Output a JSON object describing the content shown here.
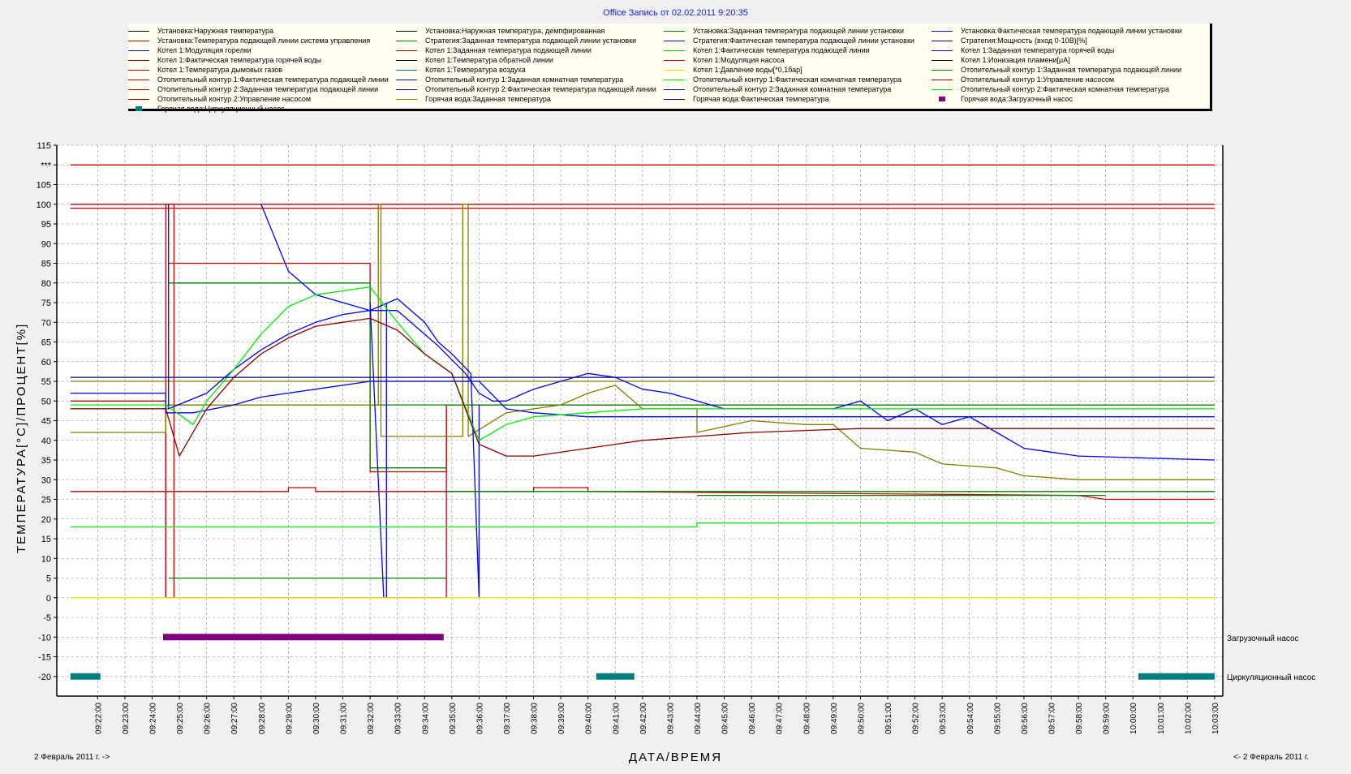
{
  "title": "Office Запись от 02.02.2011 9:20:35",
  "legend": [
    {
      "label": "Установка:Наружная температура",
      "color": "#000000"
    },
    {
      "label": "Установка:Наружная температура, демпфированная",
      "color": "#000000"
    },
    {
      "label": "Установка:Заданная температура подающей линии установки",
      "color": "#008000"
    },
    {
      "label": "Установка:Фактическая температура подающей линии установки",
      "color": "#0000ff"
    },
    {
      "label": "Установка:Температура подающей линии система управления",
      "color": "#cc0000"
    },
    {
      "label": "Стратегия:Заданная температура подающей линии установки",
      "color": "#008000"
    },
    {
      "label": "Стратегия:Фактическая температура подающей линии установки",
      "color": "#0000ff"
    },
    {
      "label": "Стратегия:Мощность (вход 0-10В)[%]",
      "color": "#000080"
    },
    {
      "label": "Котел 1:Модуляция горелки",
      "color": "#0000ff"
    },
    {
      "label": "Котел 1:Заданная температура подающей линии",
      "color": "#cc0000"
    },
    {
      "label": "Котел 1:Фактическая температура подающей линии",
      "color": "#00cc00"
    },
    {
      "label": "Котел 1:Заданная температура горячей воды",
      "color": "#0000ff"
    },
    {
      "label": "Котел 1:Фактическая температура горячей воды",
      "color": "#8b0000"
    },
    {
      "label": "Котел 1:Температура обратной линии",
      "color": "#000000"
    },
    {
      "label": "Котел 1:Модуляция насоса",
      "color": "#cc0000"
    },
    {
      "label": "Котел 1:Ионизация пламени[µA]",
      "color": "#000000"
    },
    {
      "label": "Котел 1:Температура дымовых газов",
      "color": "#cc0000"
    },
    {
      "label": "Котел 1:Температура воздуха",
      "color": "#008080"
    },
    {
      "label": "Котел 1:Давление воды[*0,1бар]",
      "color": "#e6e600"
    },
    {
      "label": "Отопительный контур 1:Заданная температура подающей линии",
      "color": "#008000"
    },
    {
      "label": "Отопительный контур 1:Фактическая температура подающей линии",
      "color": "#cc0000"
    },
    {
      "label": "Отопительный контур 1:Заданная комнатная температура",
      "color": "#0000ff"
    },
    {
      "label": "Отопительный контур 1:Фактическая комнатная температура",
      "color": "#00ee00"
    },
    {
      "label": "Отопительный контур 1:Управление насосом",
      "color": "#cc0000"
    },
    {
      "label": "Отопительный контур 2:Заданная температура подающей линии",
      "color": "#cc0000"
    },
    {
      "label": "Отопительный контур 2:Фактическая температура подающей линии",
      "color": "#0000ff"
    },
    {
      "label": "Отопительный контур 2:Заданная комнатная температура",
      "color": "#0000ff"
    },
    {
      "label": "Отопительный контур 2:Фактическая комнатная температура",
      "color": "#00ee00"
    },
    {
      "label": "Отопительный контур 2:Управление насосом",
      "color": "#8b0000"
    },
    {
      "label": "Горячая вода:Заданная температура",
      "color": "#808000"
    },
    {
      "label": "Горячая вода:Фактическая температура",
      "color": "#0000aa"
    },
    {
      "label": "Горячая вода:Загрузочный насос",
      "color": "#800080",
      "thick": true
    },
    {
      "label": "Горячая вода:Циркуляционный насос",
      "color": "#008080",
      "thick": true
    }
  ],
  "axis_labels": {
    "y": "ТЕМПЕРАТУРА[°C]/ПРОЦЕНТ[%]",
    "x": "ДАТА/ВРЕМЯ"
  },
  "date_left": "2 Февраль 2011 г. ->",
  "date_right": "<- 2 Февраль 2011 г.",
  "pump_labels": {
    "load": "Загрузочный насос",
    "circ": "Циркуляционный насос"
  },
  "chart_data": {
    "type": "line",
    "title": "Office Запись от 02.02.2011 9:20:35",
    "xlabel": "ДАТА/ВРЕМЯ",
    "ylabel": "ТЕМПЕРАТУРА[°C]/ПРОЦЕНТ[%]",
    "ylim": [
      -25,
      115
    ],
    "y_ticks": [
      "115",
      "***",
      "105",
      "100",
      "95",
      "90",
      "85",
      "80",
      "75",
      "70",
      "65",
      "60",
      "55",
      "50",
      "45",
      "40",
      "35",
      "30",
      "25",
      "20",
      "15",
      "10",
      "5",
      "0",
      "-5",
      "-10",
      "-15",
      "-20"
    ],
    "x_ticks": [
      "09:22:00",
      "09:23:00",
      "09:24:00",
      "09:25:00",
      "09:26:00",
      "09:27:00",
      "09:28:00",
      "09:29:00",
      "09:30:00",
      "09:31:00",
      "09:32:00",
      "09:33:00",
      "09:34:00",
      "09:35:00",
      "09:36:00",
      "09:37:00",
      "09:38:00",
      "09:39:00",
      "09:40:00",
      "09:41:00",
      "09:42:00",
      "09:43:00",
      "09:44:00",
      "09:45:00",
      "09:46:00",
      "09:47:00",
      "09:48:00",
      "09:49:00",
      "09:50:00",
      "09:51:00",
      "09:52:00",
      "09:53:00",
      "09:54:00",
      "09:55:00",
      "09:56:00",
      "09:57:00",
      "09:58:00",
      "09:59:00",
      "10:00:00",
      "10:01:00",
      "10:02:00",
      "10:03:00"
    ],
    "grid": true,
    "legend_position": "top",
    "series": [
      {
        "color": "#cc0000",
        "points": [
          [
            21.0,
            110
          ],
          [
            24.6,
            110
          ],
          [
            32.0,
            110
          ],
          [
            45.0,
            110
          ],
          [
            63.0,
            110
          ]
        ]
      },
      {
        "color": "#cc0000",
        "points": [
          [
            21.0,
            100
          ],
          [
            63.0,
            100
          ]
        ]
      },
      {
        "color": "#cc0000",
        "points": [
          [
            21.0,
            99
          ],
          [
            63.0,
            99
          ]
        ]
      },
      {
        "color": "#cc0000",
        "points": [
          [
            21.0,
            50
          ],
          [
            24.5,
            50
          ],
          [
            24.5,
            0
          ],
          [
            34.8,
            0
          ],
          [
            34.8,
            49
          ],
          [
            63.0,
            49
          ]
        ]
      },
      {
        "color": "#cc0000",
        "points": [
          [
            24.5,
            0
          ],
          [
            24.5,
            100
          ],
          [
            24.8,
            100
          ],
          [
            24.8,
            0
          ]
        ]
      },
      {
        "color": "#cc0000",
        "points": [
          [
            24.6,
            85
          ],
          [
            32.0,
            85
          ],
          [
            32.0,
            32
          ],
          [
            34.8,
            32
          ],
          [
            34.8,
            48
          ]
        ]
      },
      {
        "color": "#008000",
        "points": [
          [
            24.6,
            80
          ],
          [
            32.0,
            80
          ],
          [
            32.0,
            33
          ],
          [
            34.8,
            33
          ]
        ]
      },
      {
        "color": "#008000",
        "points": [
          [
            24.6,
            5
          ],
          [
            34.8,
            5
          ]
        ]
      },
      {
        "color": "#008000",
        "points": [
          [
            21.0,
            48
          ],
          [
            24.6,
            48
          ],
          [
            24.6,
            49
          ],
          [
            63.0,
            49
          ]
        ]
      },
      {
        "color": "#808000",
        "points": [
          [
            21.0,
            55
          ],
          [
            63.0,
            55
          ]
        ]
      },
      {
        "color": "#808000",
        "points": [
          [
            21.0,
            42
          ],
          [
            24.5,
            42
          ],
          [
            24.5,
            49
          ],
          [
            32.3,
            49
          ],
          [
            32.3,
            100
          ],
          [
            32.4,
            100
          ],
          [
            32.4,
            41
          ],
          [
            35.4,
            41
          ],
          [
            35.4,
            100
          ],
          [
            35.6,
            100
          ],
          [
            35.6,
            41
          ],
          [
            37.0,
            47
          ],
          [
            39.0,
            49
          ],
          [
            40.0,
            52
          ],
          [
            41.0,
            54
          ],
          [
            42.0,
            48
          ],
          [
            44.0,
            48
          ],
          [
            44.0,
            42
          ],
          [
            46.0,
            45
          ],
          [
            48.0,
            44
          ],
          [
            49.0,
            44
          ],
          [
            50.0,
            38
          ],
          [
            52.0,
            37
          ],
          [
            53.0,
            34
          ],
          [
            55.0,
            33
          ],
          [
            56.0,
            31
          ],
          [
            58.0,
            30
          ],
          [
            63.0,
            30
          ]
        ]
      },
      {
        "color": "#0000ff",
        "points": [
          [
            21.0,
            52
          ],
          [
            24.5,
            52
          ],
          [
            24.5,
            47
          ],
          [
            25.5,
            47
          ],
          [
            27.0,
            49
          ],
          [
            28.0,
            51
          ],
          [
            30.0,
            53
          ],
          [
            32.0,
            55
          ],
          [
            36.0,
            55
          ],
          [
            37.0,
            48
          ],
          [
            38.0,
            47
          ],
          [
            40.0,
            46
          ],
          [
            42.0,
            46
          ],
          [
            44.0,
            46
          ],
          [
            50.0,
            46
          ],
          [
            63.0,
            46
          ]
        ]
      },
      {
        "color": "#0000ff",
        "points": [
          [
            28.0,
            100
          ],
          [
            29.0,
            83
          ],
          [
            30.0,
            77
          ],
          [
            31.0,
            75
          ],
          [
            32.0,
            73
          ],
          [
            33.0,
            73
          ],
          [
            33.5,
            70
          ],
          [
            34.5,
            64
          ],
          [
            35.5,
            57
          ],
          [
            36.0,
            52
          ],
          [
            36.5,
            50
          ],
          [
            37.0,
            50
          ],
          [
            38.0,
            53
          ],
          [
            39.0,
            55
          ],
          [
            40.0,
            57
          ],
          [
            41.0,
            56
          ],
          [
            42.0,
            53
          ],
          [
            43.0,
            52
          ],
          [
            44.0,
            50
          ],
          [
            45.0,
            48
          ],
          [
            49.0,
            48
          ],
          [
            50.0,
            50
          ],
          [
            51.0,
            45
          ],
          [
            52.0,
            48
          ],
          [
            53.0,
            44
          ],
          [
            54.0,
            46
          ],
          [
            55.0,
            42
          ],
          [
            56.0,
            38
          ],
          [
            57.0,
            37
          ],
          [
            58.0,
            36
          ],
          [
            63.0,
            35
          ]
        ]
      },
      {
        "color": "#0000ff",
        "points": [
          [
            24.6,
            100
          ],
          [
            24.6,
            48
          ],
          [
            26.0,
            52
          ],
          [
            27.0,
            58
          ],
          [
            28.0,
            63
          ],
          [
            29.0,
            67
          ],
          [
            30.0,
            70
          ],
          [
            31.0,
            72
          ],
          [
            32.0,
            73
          ],
          [
            33.0,
            76
          ],
          [
            34.0,
            70
          ],
          [
            34.5,
            65
          ],
          [
            35.0,
            62
          ],
          [
            35.7,
            57
          ],
          [
            36.0,
            0
          ],
          [
            36.0,
            49
          ]
        ]
      },
      {
        "color": "#0000ff",
        "points": [
          [
            32.0,
            75
          ],
          [
            32.5,
            0
          ],
          [
            32.6,
            0
          ],
          [
            32.6,
            75
          ]
        ]
      },
      {
        "color": "#00ee00",
        "points": [
          [
            21.0,
            49
          ],
          [
            24.5,
            49
          ],
          [
            25.5,
            44
          ],
          [
            26.0,
            50
          ],
          [
            27.0,
            58
          ],
          [
            28.0,
            67
          ],
          [
            29.0,
            74
          ],
          [
            30.0,
            77
          ],
          [
            31.0,
            78
          ],
          [
            32.0,
            79
          ],
          [
            33.0,
            70
          ],
          [
            34.0,
            62
          ],
          [
            35.0,
            57
          ],
          [
            36.0,
            40
          ],
          [
            37.0,
            44
          ],
          [
            38.0,
            46
          ],
          [
            40.0,
            47
          ],
          [
            42.0,
            48
          ],
          [
            44.0,
            48
          ],
          [
            46.0,
            48
          ],
          [
            63.0,
            48
          ]
        ]
      },
      {
        "color": "#00ee00",
        "points": [
          [
            21.0,
            18
          ],
          [
            44.0,
            18
          ],
          [
            44.0,
            19
          ],
          [
            63.0,
            19
          ]
        ]
      },
      {
        "color": "#8b0000",
        "points": [
          [
            21.0,
            48
          ],
          [
            24.5,
            48
          ],
          [
            25.0,
            36
          ],
          [
            26.0,
            48
          ],
          [
            27.0,
            56
          ],
          [
            28.0,
            62
          ],
          [
            29.0,
            66
          ],
          [
            30.0,
            69
          ],
          [
            31.0,
            70
          ],
          [
            32.0,
            71
          ],
          [
            33.0,
            68
          ],
          [
            34.0,
            62
          ],
          [
            35.0,
            57
          ],
          [
            36.0,
            39
          ],
          [
            37.0,
            36
          ],
          [
            38.0,
            36
          ],
          [
            40.0,
            38
          ],
          [
            42.0,
            40
          ],
          [
            44.0,
            41
          ],
          [
            46.0,
            42
          ],
          [
            50.0,
            43
          ],
          [
            63.0,
            43
          ]
        ]
      },
      {
        "color": "#cc0000",
        "points": [
          [
            21.0,
            27
          ],
          [
            29.0,
            27
          ],
          [
            29.0,
            28
          ],
          [
            30.0,
            28
          ],
          [
            30.0,
            27
          ],
          [
            38.0,
            27
          ],
          [
            38.0,
            28
          ],
          [
            40.0,
            28
          ],
          [
            40.0,
            27
          ],
          [
            58.0,
            26
          ],
          [
            59.0,
            25
          ],
          [
            63.0,
            25
          ]
        ]
      },
      {
        "color": "#008000",
        "points": [
          [
            34.8,
            27
          ],
          [
            63.0,
            27
          ]
        ]
      },
      {
        "color": "#008000",
        "points": [
          [
            44.0,
            26
          ],
          [
            59.0,
            26
          ]
        ]
      },
      {
        "color": "#e6e600",
        "points": [
          [
            21.0,
            0
          ],
          [
            63.0,
            0
          ]
        ]
      },
      {
        "color": "#000080",
        "points": [
          [
            21.0,
            56
          ],
          [
            63.0,
            56
          ]
        ]
      }
    ],
    "pumps": {
      "load": {
        "value": -10,
        "segments": [
          [
            24.4,
            34.7
          ]
        ]
      },
      "circ": {
        "value": -20,
        "segments": [
          [
            21.0,
            22.1
          ],
          [
            40.3,
            41.7
          ],
          [
            60.2,
            63.0
          ]
        ]
      }
    }
  }
}
